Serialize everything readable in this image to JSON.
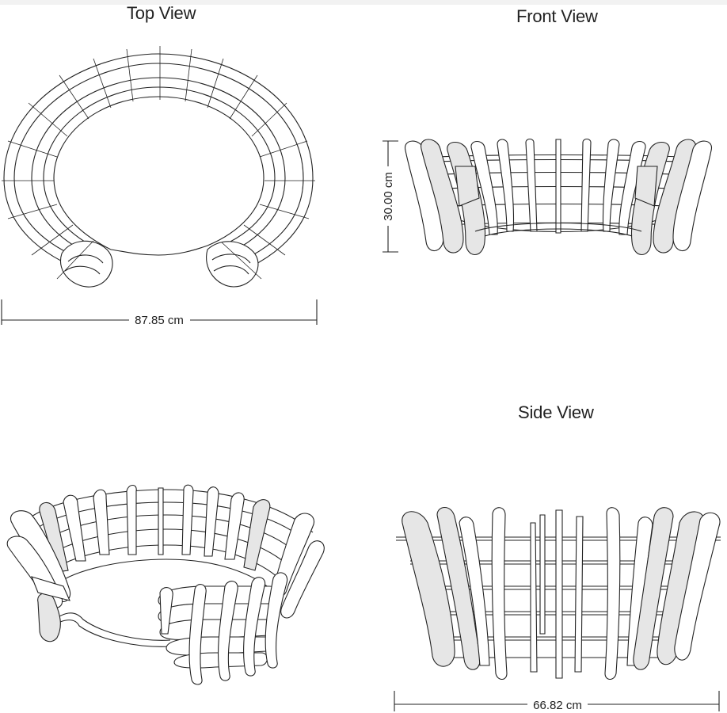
{
  "views": {
    "top": {
      "title": "Top View",
      "dimension": "87.85 cm"
    },
    "front": {
      "title": "Front View",
      "dimension": "30.00 cm"
    },
    "side": {
      "title": "Side View",
      "dimension": "66.82 cm"
    },
    "perspective": {
      "title": ""
    }
  },
  "colors": {
    "line": "#222222",
    "fill_shaded": "#e6e6e6",
    "background": "#ffffff"
  }
}
